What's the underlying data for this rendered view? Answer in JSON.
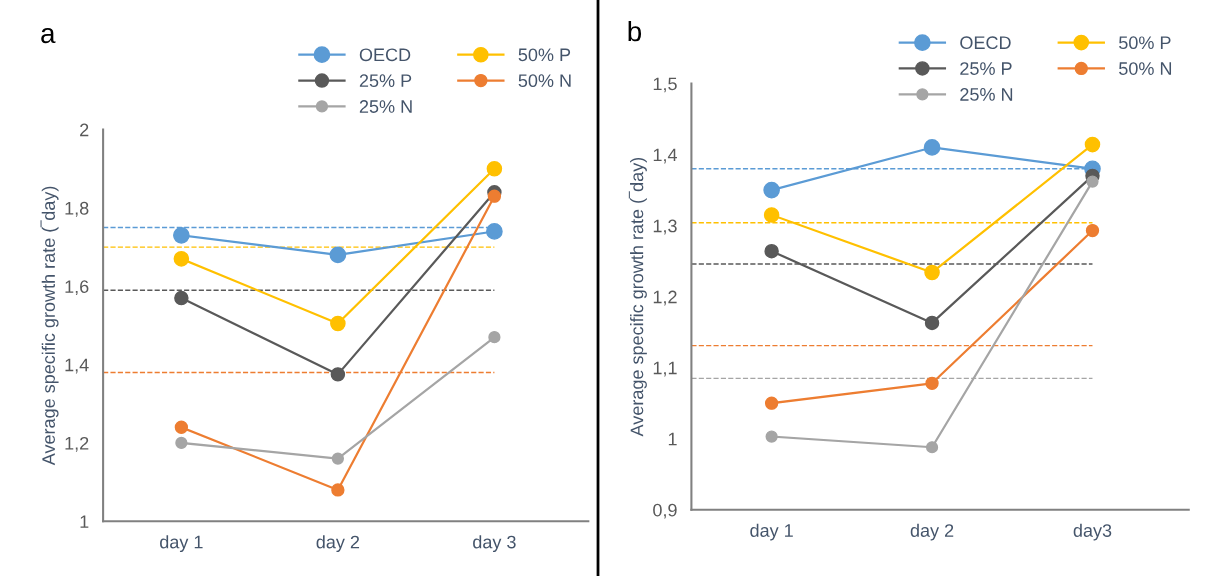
{
  "chart_data": [
    {
      "type": "line",
      "title": "a",
      "ylabel": "Average specific growth rate (‾day)",
      "categories": [
        "day 1",
        "day 2",
        "day 3"
      ],
      "marker": "circle",
      "legend": "top right",
      "grid": false,
      "ylim": [
        1,
        2
      ],
      "yticks": [
        1,
        {
          "value": 1.2,
          "label": "1,2"
        },
        {
          "value": 1.4,
          "label": "1,4"
        },
        {
          "value": 1.6,
          "label": "1,6"
        },
        {
          "value": 1.8,
          "label": "1,8"
        },
        2
      ],
      "series": [
        {
          "name": "OECD",
          "color": "#5b9bd5",
          "values": [
            1.73,
            1.68,
            1.74
          ]
        },
        {
          "name": "50% P",
          "color": "#ffc000",
          "values": [
            1.67,
            1.505,
            1.9
          ]
        },
        {
          "name": "25% P",
          "color": "#595959",
          "values": [
            1.57,
            1.375,
            1.84
          ]
        },
        {
          "name": "50% N",
          "color": "#ed7d31",
          "values": [
            1.24,
            1.08,
            1.83
          ]
        },
        {
          "name": "25% N",
          "color": "#a5a5a5",
          "values": [
            1.2,
            1.16,
            1.47
          ]
        }
      ],
      "ref_lines": [
        {
          "axis": "y",
          "value": 1.75,
          "color": "#5b9bd5",
          "line_style": "dashed"
        },
        {
          "axis": "y",
          "value": 1.7,
          "color": "#ffc000",
          "line_style": "dashed"
        },
        {
          "axis": "y",
          "value": 1.59,
          "color": "#595959",
          "line_style": "dashed"
        },
        {
          "axis": "y",
          "value": 1.38,
          "color": "#ed7d31",
          "line_style": "dashed"
        }
      ]
    },
    {
      "type": "line",
      "title": "b",
      "ylabel": "Average specific growth rate (‾day)",
      "categories": [
        "day 1",
        "day 2",
        "day3"
      ],
      "marker": "circle",
      "legend": "top right",
      "grid": false,
      "ylim": [
        0.9,
        1.5
      ],
      "yticks": [
        {
          "value": 0.9,
          "label": "0,9"
        },
        1,
        {
          "value": 1.1,
          "label": "1,1"
        },
        {
          "value": 1.2,
          "label": "1,2"
        },
        {
          "value": 1.3,
          "label": "1,3"
        },
        {
          "value": 1.4,
          "label": "1,4"
        },
        {
          "value": 1.5,
          "label": "1,5"
        }
      ],
      "series": [
        {
          "name": "OECD",
          "color": "#5b9bd5",
          "values": [
            1.35,
            1.41,
            1.38
          ]
        },
        {
          "name": "50% P",
          "color": "#ffc000",
          "values": [
            1.315,
            1.234,
            1.414
          ]
        },
        {
          "name": "25% P",
          "color": "#595959",
          "values": [
            1.264,
            1.163,
            1.37
          ]
        },
        {
          "name": "50% N",
          "color": "#ed7d31",
          "values": [
            1.05,
            1.078,
            1.293
          ]
        },
        {
          "name": "25% N",
          "color": "#a5a5a5",
          "values": [
            1.003,
            0.988,
            1.362
          ]
        }
      ],
      "ref_lines": [
        {
          "axis": "y",
          "value": 1.38,
          "color": "#5b9bd5",
          "line_style": "dashed"
        },
        {
          "axis": "y",
          "value": 1.304,
          "color": "#ffc000",
          "line_style": "dashed"
        },
        {
          "axis": "y",
          "value": 1.246,
          "color": "#595959",
          "line_style": "dashed"
        },
        {
          "axis": "y",
          "value": 1.131,
          "color": "#ed7d31",
          "line_style": "dashed"
        },
        {
          "axis": "y",
          "value": 1.085,
          "color": "#a5a5a5",
          "line_style": "dashed"
        }
      ]
    }
  ]
}
